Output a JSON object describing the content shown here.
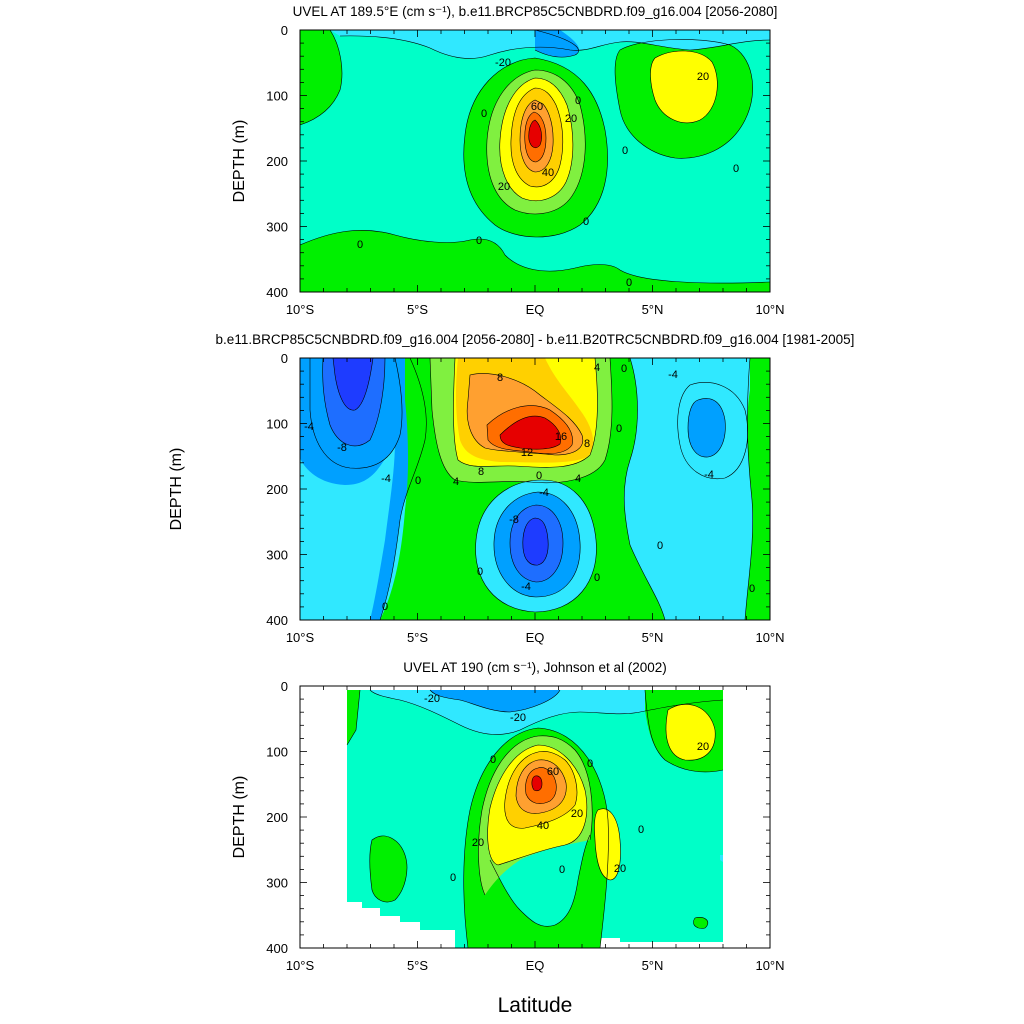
{
  "colors": {
    "c_neg40": "#1e3cff",
    "c_neg30": "#1e6eff",
    "c_neg20": "#00a0ff",
    "c_neg10": "#30e8ff",
    "c_0": "#00ffc8",
    "c_p10": "#00f000",
    "c_p20": "#80f040",
    "c_p30": "#ffff00",
    "c_p40": "#ffd000",
    "c_p50": "#ffa030",
    "c_p60": "#ff6e00",
    "c_p70": "#e60000"
  },
  "x_tick_labels": [
    "10°S",
    "5°S",
    "EQ",
    "5°N",
    "10°N"
  ],
  "xlabel": "Latitude",
  "chart_data": [
    {
      "type": "contour",
      "title": "UVEL AT 189.5°E (cm s⁻¹), b.e11.BRCP85C5CNBDRD.f09_g16.004 [2056-2080]",
      "ylabel": "DEPTH (m)",
      "x": [
        -10,
        -5,
        0,
        5,
        10
      ],
      "xlim": [
        -10,
        10
      ],
      "ylim": [
        0,
        400
      ],
      "y_reversed": true,
      "y_ticks": [
        0,
        100,
        200,
        300,
        400
      ],
      "contour_labels": [
        "-20",
        "0",
        "60",
        "20",
        "40",
        "0",
        "20",
        "0",
        "0",
        "0",
        "0",
        "20",
        "0",
        "0"
      ],
      "features": [
        {
          "kind": "max",
          "lat": 0,
          "depth": 150,
          "value": 60
        },
        {
          "kind": "max",
          "lat": 5.5,
          "depth": 80,
          "value": 20
        },
        {
          "kind": "min",
          "lat": -1,
          "depth": 20,
          "value": -20
        }
      ]
    },
    {
      "type": "contour",
      "title": "b.e11.BRCP85C5CNBDRD.f09_g16.004 [2056-2080] - b.e11.B20TRC5CNBDRD.f09_g16.004 [1981-2005]",
      "ylabel": "DEPTH (m)",
      "x": [
        -10,
        -5,
        0,
        5,
        10
      ],
      "xlim": [
        -10,
        10
      ],
      "ylim": [
        0,
        400
      ],
      "y_reversed": true,
      "y_ticks": [
        0,
        100,
        200,
        300,
        400
      ],
      "contour_labels": [
        "-4",
        "-8",
        "-4",
        "0",
        "8",
        "16",
        "12",
        "8",
        "8",
        "4",
        "0",
        "4",
        "4",
        "-4",
        "-8",
        "0",
        "-4",
        "0",
        "0",
        "0",
        "0",
        "-4",
        "-4",
        "0",
        "0"
      ],
      "features": [
        {
          "kind": "max",
          "lat": 0,
          "depth": 120,
          "value": 20
        },
        {
          "kind": "min",
          "lat": 0,
          "depth": 275,
          "value": -14
        },
        {
          "kind": "min",
          "lat": -8,
          "depth": 40,
          "value": -12
        },
        {
          "kind": "min",
          "lat": 7,
          "depth": 100,
          "value": -8
        }
      ]
    },
    {
      "type": "contour",
      "title": "UVEL AT 190 (cm s⁻¹), Johnson et al (2002)",
      "ylabel": "DEPTH (m)",
      "x": [
        -10,
        -5,
        0,
        5,
        10
      ],
      "xlim": [
        -10,
        10
      ],
      "ylim": [
        0,
        400
      ],
      "y_reversed": true,
      "y_ticks": [
        0,
        100,
        200,
        300,
        400
      ],
      "data_lat_range": [
        -8,
        8
      ],
      "contour_labels": [
        "-20",
        "-20",
        "0",
        "60",
        "40",
        "20",
        "20",
        "0",
        "20",
        "0",
        "20",
        "0",
        "0"
      ],
      "features": [
        {
          "kind": "max",
          "lat": 0,
          "depth": 150,
          "value": 70
        },
        {
          "kind": "max",
          "lat": 7,
          "depth": 50,
          "value": 20
        },
        {
          "kind": "max",
          "lat": 3,
          "depth": 230,
          "value": 20
        },
        {
          "kind": "min",
          "lat": -3,
          "depth": 30,
          "value": -20
        }
      ]
    }
  ]
}
